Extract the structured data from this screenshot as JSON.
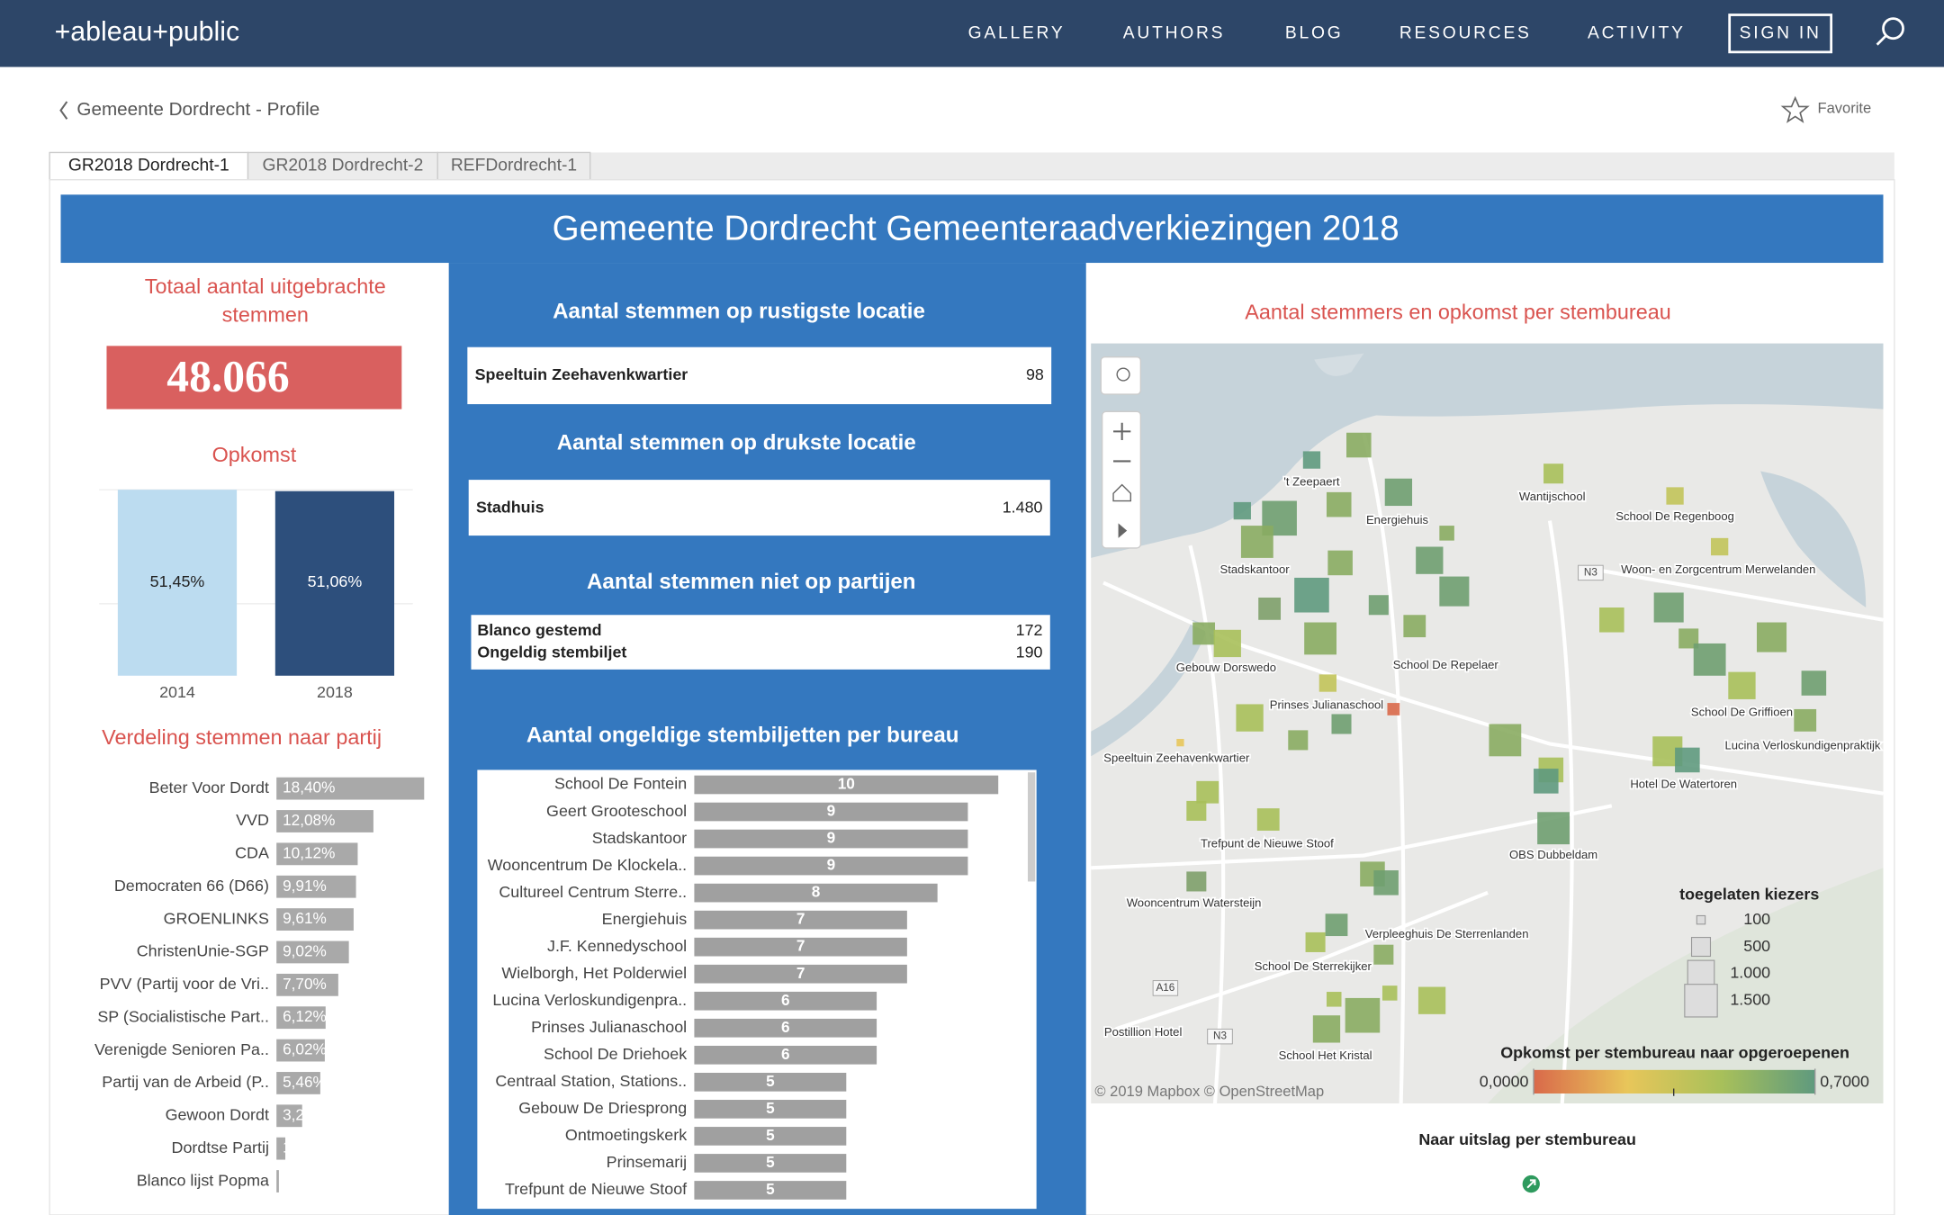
{
  "nav": {
    "logo": "+ableau+public",
    "links": [
      "GALLERY",
      "AUTHORS",
      "BLOG",
      "RESOURCES",
      "ACTIVITY"
    ],
    "sign_in": "SIGN IN"
  },
  "breadcrumb": "Gemeente Dordrecht - Profile",
  "favorite": "Favorite",
  "tabs": [
    "GR2018 Dordrecht-1",
    "GR2018 Dordrecht-2",
    "REFDordrecht-1"
  ],
  "dashboard_title": "Gemeente Dordrecht Gemeenteraadverkiezingen 2018",
  "total": {
    "title_lines": [
      "Totaal aantal uitgebrachte",
      "stemmen"
    ],
    "value": "48.066"
  },
  "opkomst": {
    "type": "bar",
    "title": "Opkomst",
    "categories": [
      "2014",
      "2018"
    ],
    "values": [
      51.45,
      51.06
    ],
    "value_labels": [
      "51,45%",
      "51,06%"
    ],
    "colors": [
      "#bcdcf0",
      "#2d4f7c"
    ],
    "ylim": [
      0,
      52
    ]
  },
  "party": {
    "type": "bar",
    "orientation": "horizontal",
    "title": "Verdeling stemmen naar partij",
    "categories": [
      "Beter Voor Dordt",
      "VVD",
      "CDA",
      "Democraten 66 (D66)",
      "GROENLINKS",
      "ChristenUnie-SGP",
      "PVV (Partij voor de Vri..",
      "SP (Socialistische Part..",
      "Verenigde Senioren Pa..",
      "Partij van de Arbeid (P..",
      "Gewoon Dordt",
      "Dordtse Partij",
      "Blanco lijst Popma"
    ],
    "values": [
      18.4,
      12.08,
      10.12,
      9.91,
      9.61,
      9.02,
      7.7,
      6.12,
      6.02,
      5.46,
      3.2,
      1.1,
      0.3
    ],
    "value_labels": [
      "18,40%",
      "12,08%",
      "10,12%",
      "9,91%",
      "9,61%",
      "9,02%",
      "7,70%",
      "6,12%",
      "6,02%",
      "5,46%",
      "3,2",
      "1,",
      null
    ],
    "color": "#a9a9a9",
    "xlim": [
      0,
      19
    ]
  },
  "quietest": {
    "title": "Aantal stemmen op rustigste locatie",
    "name": "Speeltuin Zeehavenkwartier",
    "value": "98"
  },
  "busiest": {
    "title": "Aantal stemmen op drukste locatie",
    "name": "Stadhuis",
    "value": "1.480"
  },
  "not_party": {
    "title": "Aantal stemmen niet op partijen",
    "rows": [
      [
        "Blanco gestemd",
        "172"
      ],
      [
        "Ongeldig stembiljet",
        "190"
      ]
    ]
  },
  "invalid": {
    "type": "bar",
    "orientation": "horizontal",
    "title": "Aantal ongeldige stembiljetten per bureau",
    "categories": [
      "School De Fontein",
      "Geert Grooteschool",
      "Stadskantoor",
      "Wooncentrum De Klockela..",
      "Cultureel Centrum Sterre..",
      "Energiehuis",
      "J.F. Kennedyschool",
      "Wielborgh, Het Polderwiel",
      "Lucina Verloskundigenpra..",
      "Prinses Julianaschool",
      "School De Driehoek",
      "Centraal Station, Stations..",
      "Gebouw De Driesprong",
      "Ontmoetingskerk",
      "Prinsemarij",
      "Trefpunt de Nieuwe Stoof"
    ],
    "values": [
      10,
      9,
      9,
      9,
      8,
      7,
      7,
      7,
      6,
      6,
      6,
      5,
      5,
      5,
      5,
      5
    ],
    "color": "#a0a0a0",
    "xlim": [
      0,
      10.4
    ]
  },
  "map": {
    "title": "Aantal stemmers en opkomst per stembureau",
    "locations": [
      "'t Zeepaert",
      "Energiehuis",
      "Wantijschool",
      "School De Regenboog",
      "Stadskantoor",
      "Woon- en Zorgcentrum Merwelanden",
      "Gebouw Dorswedo",
      "School De Repelaer",
      "Prinses Julianaschool",
      "School De Griffioen",
      "Speeltuin Zeehavenkwartier",
      "Lucina Verloskundigenpraktijk",
      "Hotel De Watertoren",
      "Trefpunt de Nieuwe Stoof",
      "OBS Dubbeldam",
      "Wooncentrum Watersteijn",
      "Verpleeghuis De Sterrenlanden",
      "School De Sterrekijker",
      "Postillion Hotel",
      "School Het Kristal"
    ],
    "roads": [
      "N3",
      "A16",
      "N3"
    ],
    "size_legend": {
      "title": "toegelaten kiezers",
      "ticks": [
        100,
        500,
        {
          "value": 1000,
          "label": "1.000"
        },
        {
          "value": 1500,
          "label": "1.500"
        }
      ]
    },
    "color_legend": {
      "title": "Opkomst per stembureau naar opgeroepenen",
      "ticks": [
        {
          "value": 0,
          "label": "0,0000"
        },
        {
          "value": 0.7,
          "label": "0,7000"
        }
      ],
      "colors": [
        "#d9694a",
        "#e8c65a",
        "#a8c05a",
        "#5f9a7e"
      ]
    },
    "attribution": "© 2019 Mapbox © OpenStreetMap"
  },
  "link": "Naar uitslag per stembureau"
}
